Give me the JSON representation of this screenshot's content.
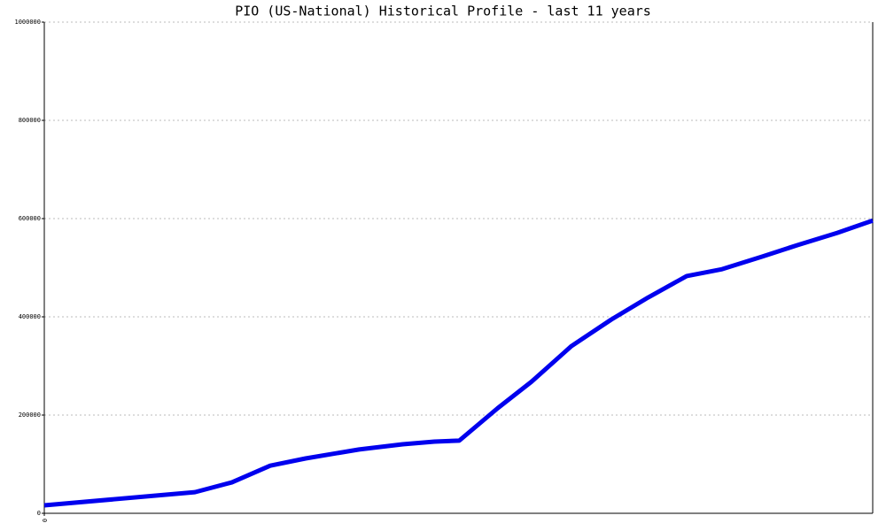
{
  "chart_data": {
    "type": "line",
    "title": "PIO (US-National) Historical Profile - last 11 years",
    "x": [
      0,
      2.0,
      2.49,
      3.0,
      3.47,
      4.18,
      4.76,
      5.18,
      5.51,
      6.02,
      6.47,
      7.0,
      7.53,
      8.02,
      8.53,
      9.0,
      9.53,
      10.0,
      10.53,
      11.0
    ],
    "values": [
      16200,
      43000,
      63000,
      97000,
      111700,
      130000,
      140500,
      146000,
      148000,
      214000,
      268000,
      340500,
      394600,
      439600,
      483000,
      497000,
      522500,
      546000,
      571000,
      596000
    ],
    "color": "#0000ee",
    "xlim": [
      0,
      11
    ],
    "xticks": [
      0
    ],
    "ylim": [
      0,
      1000000
    ],
    "yticks": [
      0,
      200000,
      400000,
      600000,
      800000,
      1000000
    ],
    "grid": true
  }
}
